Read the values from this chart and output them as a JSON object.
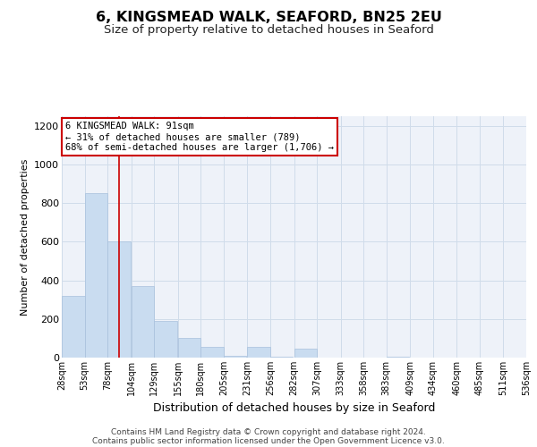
{
  "title": "6, KINGSMEAD WALK, SEAFORD, BN25 2EU",
  "subtitle": "Size of property relative to detached houses in Seaford",
  "xlabel": "Distribution of detached houses by size in Seaford",
  "ylabel": "Number of detached properties",
  "bins": [
    28,
    53,
    78,
    104,
    129,
    155,
    180,
    205,
    231,
    256,
    282,
    307,
    333,
    358,
    383,
    409,
    434,
    460,
    485,
    511,
    536
  ],
  "bar_heights": [
    320,
    850,
    600,
    370,
    190,
    100,
    55,
    10,
    55,
    5,
    45,
    0,
    0,
    0,
    5,
    0,
    0,
    0,
    0,
    0
  ],
  "bar_color": "#c9dcf0",
  "bar_edge_color": "#a8c0dc",
  "grid_color": "#d0dcea",
  "bg_color": "#eef2f9",
  "property_line_x": 91,
  "property_line_color": "#cc0000",
  "annotation_text": "6 KINGSMEAD WALK: 91sqm\n← 31% of detached houses are smaller (789)\n68% of semi-detached houses are larger (1,706) →",
  "annotation_box_color": "#cc0000",
  "annotation_text_color": "#000000",
  "ylim": [
    0,
    1250
  ],
  "yticks": [
    0,
    200,
    400,
    600,
    800,
    1000,
    1200
  ],
  "tick_labels": [
    "28sqm",
    "53sqm",
    "78sqm",
    "104sqm",
    "129sqm",
    "155sqm",
    "180sqm",
    "205sqm",
    "231sqm",
    "256sqm",
    "282sqm",
    "307sqm",
    "333sqm",
    "358sqm",
    "383sqm",
    "409sqm",
    "434sqm",
    "460sqm",
    "485sqm",
    "511sqm",
    "536sqm"
  ],
  "footnote_line1": "Contains HM Land Registry data © Crown copyright and database right 2024.",
  "footnote_line2": "Contains public sector information licensed under the Open Government Licence v3.0.",
  "title_fontsize": 11.5,
  "subtitle_fontsize": 9.5,
  "xlabel_fontsize": 9,
  "ylabel_fontsize": 8,
  "tick_fontsize": 7,
  "ytick_fontsize": 8,
  "footnote_fontsize": 6.5,
  "annot_fontsize": 7.5
}
